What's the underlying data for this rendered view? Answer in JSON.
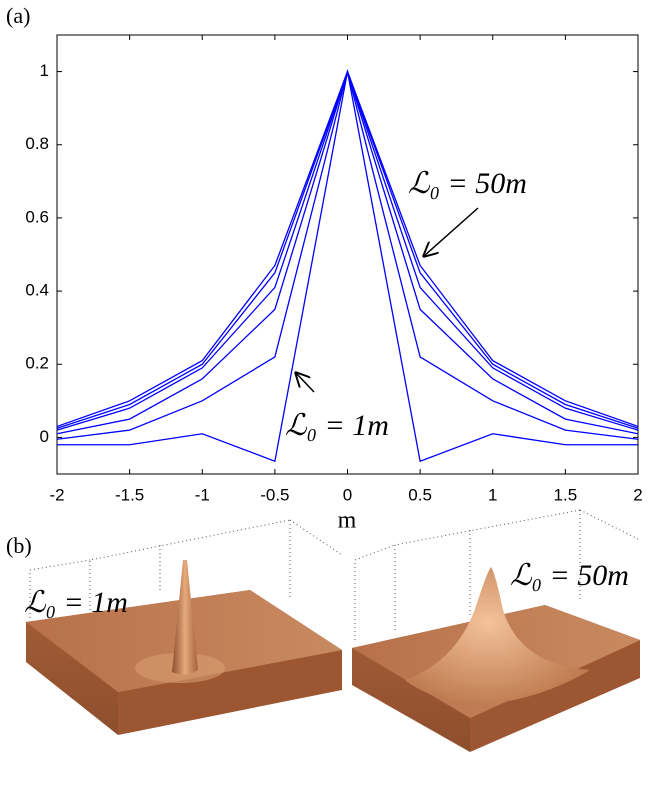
{
  "chart_data": {
    "type": "line",
    "panel_labels": [
      "(a)",
      "(b)"
    ],
    "x_label": "m",
    "x": [
      -2,
      -1.5,
      -1,
      -0.5,
      0,
      0.5,
      1,
      1.5,
      2
    ],
    "series": [
      {
        "color": "#0000ff",
        "values": [
          -0.02,
          -0.02,
          0.01,
          -0.065,
          1,
          -0.065,
          0.01,
          -0.02,
          -0.02
        ]
      },
      {
        "color": "#0000ff",
        "values": [
          -0.005,
          0.02,
          0.1,
          0.22,
          1,
          0.22,
          0.1,
          0.02,
          -0.005
        ]
      },
      {
        "color": "#0000ff",
        "values": [
          0.01,
          0.05,
          0.16,
          0.35,
          1,
          0.35,
          0.16,
          0.05,
          0.01
        ]
      },
      {
        "color": "#0000ff",
        "values": [
          0.02,
          0.08,
          0.19,
          0.41,
          1,
          0.41,
          0.19,
          0.08,
          0.02
        ]
      },
      {
        "color": "#0000ff",
        "values": [
          0.025,
          0.09,
          0.2,
          0.45,
          1,
          0.45,
          0.2,
          0.09,
          0.025
        ]
      },
      {
        "color": "#0000ff",
        "values": [
          0.03,
          0.1,
          0.21,
          0.47,
          1,
          0.47,
          0.21,
          0.1,
          0.03
        ]
      }
    ],
    "xlim": [
      -2,
      2
    ],
    "ylim": [
      -0.1,
      1.1
    ],
    "xticks": [
      -2,
      -1.5,
      -1,
      -0.5,
      0,
      0.5,
      1,
      1.5,
      2
    ],
    "yticks": [
      0,
      0.2,
      0.4,
      0.6,
      0.8,
      1
    ],
    "annotations": [
      "ℒ₀ = 50m",
      "ℒ₀ = 1m"
    ],
    "surface_labels": [
      "ℒ₀ = 1m",
      "ℒ₀ = 50m"
    ]
  }
}
